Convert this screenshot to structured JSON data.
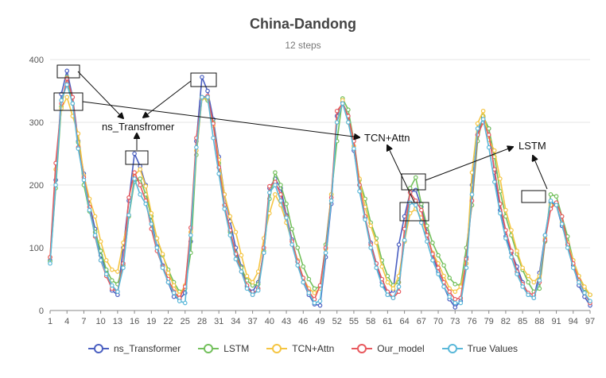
{
  "chart_data": {
    "type": "line",
    "title": "China-Dandong",
    "subtitle": "12 steps",
    "xlabel": "",
    "ylabel": "",
    "ylim": [
      0,
      400
    ],
    "yticks": [
      0,
      100,
      200,
      300,
      400
    ],
    "xtick_labels": [
      "1",
      "4",
      "7",
      "10",
      "13",
      "16",
      "19",
      "22",
      "25",
      "28",
      "31",
      "34",
      "37",
      "40",
      "43",
      "46",
      "49",
      "52",
      "55",
      "58",
      "61",
      "64",
      "67",
      "70",
      "73",
      "76",
      "79",
      "82",
      "85",
      "88",
      "91",
      "94",
      "97"
    ],
    "x": [
      1,
      2,
      3,
      4,
      5,
      6,
      7,
      8,
      9,
      10,
      11,
      12,
      13,
      14,
      15,
      16,
      17,
      18,
      19,
      20,
      21,
      22,
      23,
      24,
      25,
      26,
      27,
      28,
      29,
      30,
      31,
      32,
      33,
      34,
      35,
      36,
      37,
      38,
      39,
      40,
      41,
      42,
      43,
      44,
      45,
      46,
      47,
      48,
      49,
      50,
      51,
      52,
      53,
      54,
      55,
      56,
      57,
      58,
      59,
      60,
      61,
      62,
      63,
      64,
      65,
      66,
      67,
      68,
      69,
      70,
      71,
      72,
      73,
      74,
      75,
      76,
      77,
      78,
      79,
      80,
      81,
      82,
      83,
      84,
      85,
      86,
      87,
      88,
      89,
      90,
      91,
      92,
      93,
      94,
      95,
      96,
      97
    ],
    "grid": true,
    "legend_position": "bottom",
    "series": [
      {
        "name": "ns_Transformer",
        "color": "#4a5fc1",
        "values": [
          80,
          208,
          345,
          382,
          340,
          270,
          218,
          170,
          130,
          88,
          62,
          32,
          25,
          100,
          175,
          250,
          230,
          200,
          143,
          102,
          72,
          45,
          22,
          18,
          28,
          110,
          270,
          372,
          350,
          305,
          245,
          185,
          142,
          100,
          70,
          38,
          30,
          45,
          92,
          195,
          210,
          195,
          152,
          113,
          78,
          45,
          25,
          10,
          8,
          85,
          170,
          310,
          332,
          310,
          255,
          200,
          148,
          108,
          75,
          45,
          25,
          32,
          105,
          150,
          188,
          192,
          165,
          125,
          88,
          62,
          38,
          18,
          5,
          15,
          85,
          200,
          280,
          308,
          290,
          220,
          160,
          118,
          92,
          70,
          45,
          25,
          20,
          60,
          120,
          172,
          168,
          135,
          108,
          72,
          40,
          22,
          8
        ]
      },
      {
        "name": "LSTM",
        "color": "#73c05c",
        "values": [
          78,
          195,
          325,
          372,
          330,
          268,
          200,
          158,
          125,
          95,
          65,
          48,
          42,
          72,
          150,
          205,
          210,
          185,
          150,
          115,
          88,
          65,
          45,
          30,
          35,
          92,
          248,
          340,
          335,
          300,
          235,
          168,
          125,
          92,
          68,
          48,
          40,
          42,
          95,
          178,
          220,
          200,
          170,
          130,
          100,
          70,
          50,
          35,
          38,
          105,
          185,
          270,
          338,
          320,
          270,
          208,
          178,
          140,
          115,
          80,
          55,
          40,
          45,
          110,
          195,
          212,
          170,
          135,
          108,
          88,
          72,
          52,
          42,
          40,
          100,
          168,
          270,
          310,
          290,
          245,
          190,
          150,
          120,
          90,
          65,
          45,
          30,
          35,
          110,
          185,
          182,
          150,
          118,
          80,
          55,
          35,
          25
        ]
      },
      {
        "name": "TCN+Attn",
        "color": "#f5c542",
        "values": [
          85,
          225,
          322,
          340,
          310,
          282,
          215,
          178,
          150,
          110,
          80,
          65,
          62,
          108,
          152,
          215,
          225,
          198,
          155,
          115,
          90,
          60,
          40,
          25,
          40,
          125,
          255,
          338,
          338,
          295,
          240,
          185,
          150,
          125,
          88,
          55,
          45,
          62,
          115,
          155,
          185,
          168,
          140,
          110,
          80,
          52,
          35,
          28,
          35,
          98,
          185,
          300,
          335,
          300,
          262,
          210,
          165,
          135,
          108,
          70,
          45,
          35,
          55,
          110,
          155,
          162,
          148,
          120,
          92,
          75,
          55,
          35,
          30,
          38,
          75,
          220,
          298,
          318,
          272,
          255,
          210,
          160,
          128,
          95,
          68,
          55,
          45,
          55,
          115,
          168,
          168,
          140,
          108,
          80,
          55,
          38,
          25
        ]
      },
      {
        "name": "Our_model",
        "color": "#e8595e",
        "values": [
          85,
          235,
          330,
          370,
          340,
          260,
          212,
          165,
          118,
          80,
          55,
          35,
          30,
          75,
          180,
          220,
          200,
          175,
          130,
          95,
          70,
          50,
          30,
          20,
          38,
          132,
          275,
          340,
          342,
          298,
          228,
          168,
          128,
          90,
          62,
          40,
          25,
          35,
          100,
          198,
          205,
          185,
          150,
          110,
          78,
          52,
          30,
          18,
          40,
          100,
          180,
          318,
          330,
          310,
          270,
          200,
          150,
          105,
          75,
          50,
          30,
          20,
          30,
          130,
          188,
          175,
          160,
          120,
          90,
          68,
          45,
          30,
          18,
          20,
          82,
          175,
          280,
          300,
          280,
          225,
          170,
          128,
          95,
          62,
          42,
          28,
          25,
          45,
          112,
          162,
          172,
          150,
          105,
          75,
          48,
          28,
          12
        ]
      },
      {
        "name": "True Values",
        "color": "#5ab8d9",
        "values": [
          75,
          200,
          335,
          360,
          330,
          258,
          208,
          160,
          120,
          80,
          58,
          40,
          30,
          68,
          152,
          210,
          185,
          170,
          138,
          100,
          68,
          45,
          28,
          15,
          12,
          120,
          260,
          340,
          340,
          275,
          218,
          162,
          120,
          82,
          62,
          35,
          25,
          32,
          92,
          188,
          200,
          175,
          148,
          105,
          72,
          45,
          28,
          12,
          15,
          92,
          175,
          300,
          330,
          300,
          258,
          190,
          145,
          100,
          68,
          40,
          25,
          20,
          38,
          112,
          172,
          168,
          140,
          110,
          80,
          58,
          38,
          22,
          12,
          12,
          68,
          185,
          290,
          305,
          260,
          205,
          155,
          115,
          85,
          58,
          38,
          25,
          20,
          48,
          120,
          175,
          168,
          138,
          100,
          68,
          45,
          28,
          15
        ]
      }
    ],
    "annotations": [
      "ns_Transfromer",
      "TCN+Attn",
      "LSTM"
    ]
  }
}
